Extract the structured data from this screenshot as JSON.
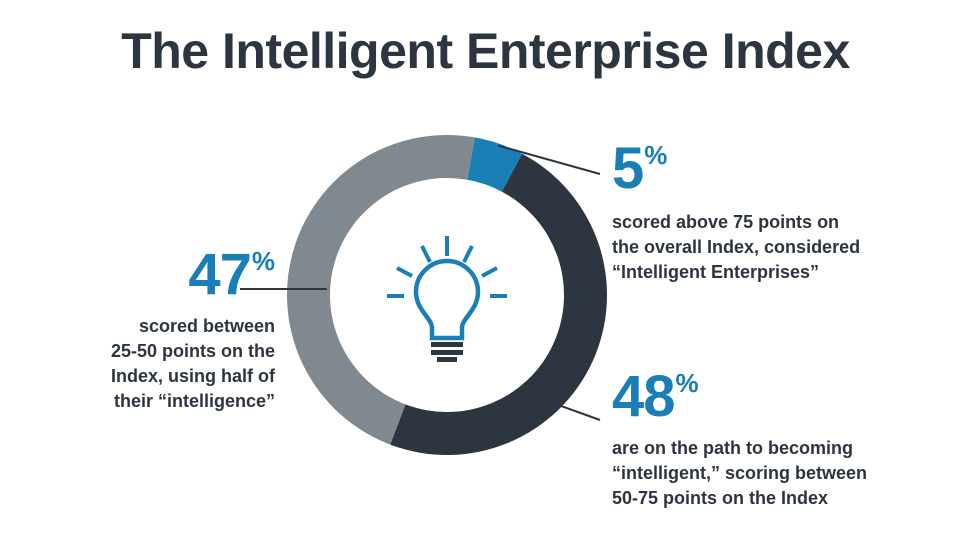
{
  "title": "The Intelligent Enterprise Index",
  "chart_data": {
    "type": "pie",
    "variant": "donut",
    "slices": [
      {
        "value": 5,
        "label": "5%",
        "description": "scored above 75 points on the overall Index, considered “Intelligent Enterprises”",
        "color": "#1a7fb7"
      },
      {
        "value": 48,
        "label": "48%",
        "description": "are on the path to becoming “intelligent,” scoring between 50-75 points on the Index",
        "color": "#2d3540"
      },
      {
        "value": 47,
        "label": "47%",
        "description": "scored between 25-50 points on the Index, using half of their “intelligence”",
        "color": "#808890"
      }
    ],
    "center_icon": "lightbulb-icon",
    "legend": "none"
  },
  "callouts": {
    "five": {
      "num": "5",
      "sign": "%",
      "desc_lines": [
        "scored above 75 points on",
        "the overall Index, considered",
        "“Intelligent Enterprises”"
      ]
    },
    "forty_eight": {
      "num": "48",
      "sign": "%",
      "desc_lines": [
        "are on the path to becoming",
        "“intelligent,” scoring between",
        "50-75 points on the Index"
      ]
    },
    "forty_seven": {
      "num": "47",
      "sign": "%",
      "desc_lines": [
        "scored between",
        "25-50 points on the",
        "Index, using half of",
        "their “intelligence”"
      ]
    }
  },
  "colors": {
    "accent": "#1a7fb7",
    "dark": "#2d3540",
    "gray": "#808890"
  }
}
